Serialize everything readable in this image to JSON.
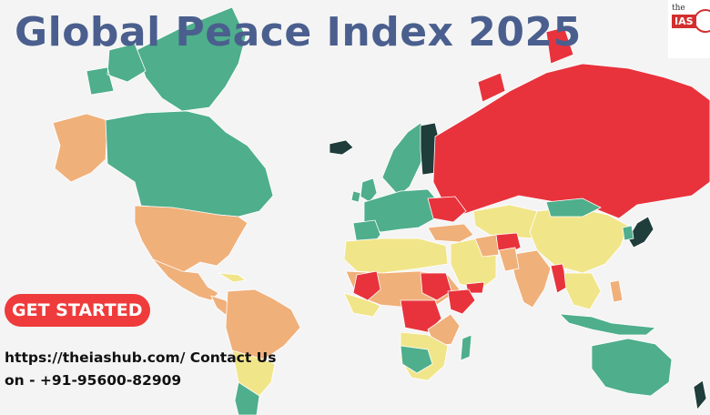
{
  "title": "Global Peace Index 2025",
  "logo": {
    "top_text": "the",
    "badge_text": "IAS"
  },
  "cta": {
    "label": "GET STARTED"
  },
  "contact": {
    "line1": "https://theiashub.com/  Contact  Us",
    "line2": "on - +91-95600-82909"
  },
  "map_colors": {
    "very_high_peace": "#1f3d3a",
    "high_peace": "#4fae8c",
    "medium_peace": "#f1e58a",
    "low_peace": "#f0b07a",
    "very_low_peace": "#e8333c",
    "ocean": "#f4f4f4"
  }
}
